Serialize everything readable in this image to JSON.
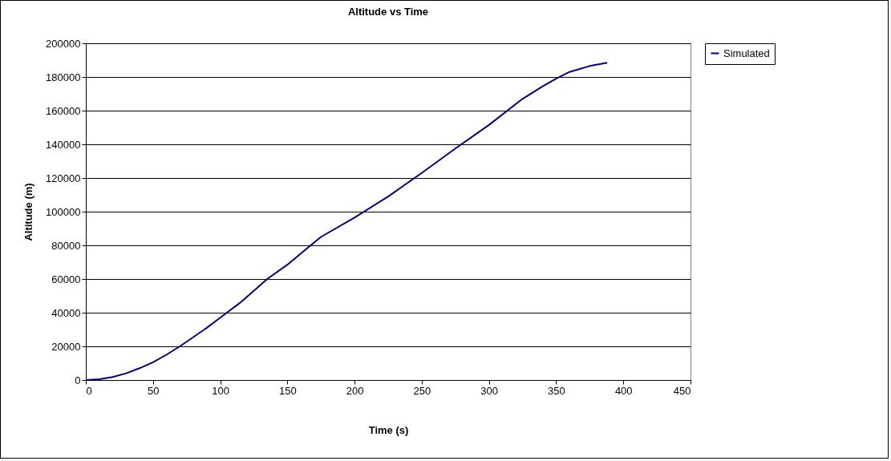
{
  "chart_data": {
    "type": "line",
    "title": "Altitude vs Time",
    "xlabel": "Time (s)",
    "ylabel": "Altitude (m)",
    "x": [
      0,
      10,
      20,
      30,
      40,
      50,
      60,
      70,
      80,
      90,
      100,
      115,
      135,
      150,
      165,
      175,
      200,
      225,
      250,
      275,
      300,
      325,
      340,
      350,
      360,
      375,
      388
    ],
    "series": [
      {
        "name": "Simulated",
        "color": "#000080",
        "values": [
          0,
          500,
          1800,
          4000,
          7000,
          10500,
          15000,
          20000,
          25500,
          31000,
          37000,
          46000,
          60000,
          68500,
          78500,
          85000,
          96500,
          109000,
          123000,
          137500,
          151500,
          167000,
          174500,
          179000,
          183000,
          186500,
          188500
        ]
      }
    ],
    "xlim": [
      0,
      450
    ],
    "xticks": [
      0,
      50,
      100,
      150,
      200,
      250,
      300,
      350,
      400,
      450
    ],
    "ylim": [
      0,
      200000
    ],
    "yticks": [
      0,
      20000,
      40000,
      60000,
      80000,
      100000,
      120000,
      140000,
      160000,
      180000,
      200000
    ],
    "grid": "y",
    "legend": "right",
    "marker": "none",
    "line_style": "solid"
  }
}
